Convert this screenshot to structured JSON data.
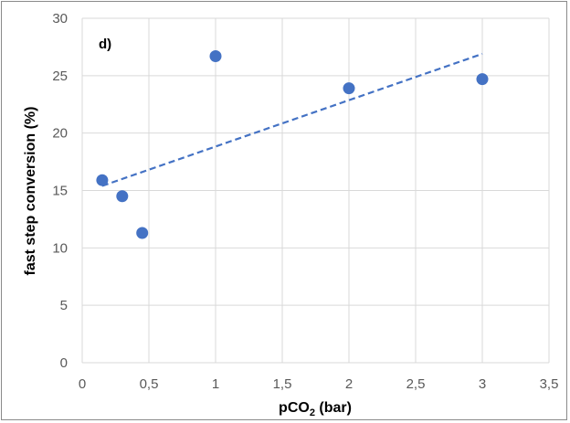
{
  "chart_data": {
    "type": "scatter",
    "panel_label": "d)",
    "xlabel": {
      "main": "pCO",
      "sub": "2",
      "tail": " (bar)"
    },
    "ylabel": "fast step  conversion (%)",
    "xlim": [
      0,
      3.5
    ],
    "ylim": [
      0,
      30
    ],
    "x_ticks": [
      {
        "value": 0,
        "label": "0"
      },
      {
        "value": 0.5,
        "label": "0,5"
      },
      {
        "value": 1,
        "label": "1"
      },
      {
        "value": 1.5,
        "label": "1,5"
      },
      {
        "value": 2,
        "label": "2"
      },
      {
        "value": 2.5,
        "label": "2,5"
      },
      {
        "value": 3,
        "label": "3"
      },
      {
        "value": 3.5,
        "label": "3,5"
      }
    ],
    "y_ticks": [
      {
        "value": 0,
        "label": "0"
      },
      {
        "value": 5,
        "label": "5"
      },
      {
        "value": 10,
        "label": "10"
      },
      {
        "value": 15,
        "label": "15"
      },
      {
        "value": 20,
        "label": "20"
      },
      {
        "value": 25,
        "label": "25"
      },
      {
        "value": 30,
        "label": "30"
      }
    ],
    "grid": true,
    "series": [
      {
        "points": [
          {
            "x": 0.15,
            "y": 15.9
          },
          {
            "x": 0.3,
            "y": 14.5
          },
          {
            "x": 0.45,
            "y": 11.3
          },
          {
            "x": 1.0,
            "y": 26.7
          },
          {
            "x": 2.0,
            "y": 23.9
          },
          {
            "x": 3.0,
            "y": 24.7
          }
        ],
        "color": "#4472c4"
      }
    ],
    "trendline": {
      "type": "linear",
      "style": "dashed",
      "color": "#4472c4",
      "x_start": 0.15,
      "y_start": 15.4,
      "x_end": 3.0,
      "y_end": 26.9
    }
  }
}
